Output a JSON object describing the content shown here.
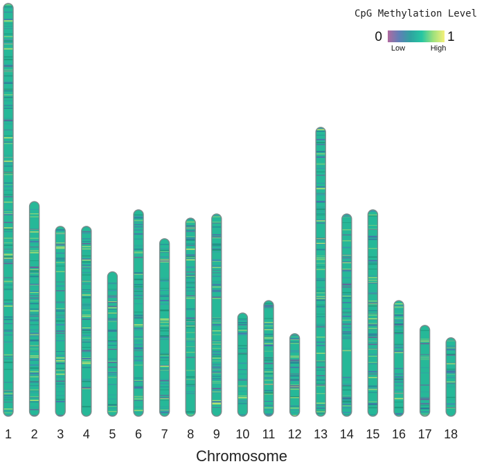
{
  "chart_data": {
    "type": "heatmap",
    "subtype": "chromosome ideogram with CpG methylation density stripes",
    "title": "CpG Methylation Level",
    "xlabel": "Chromosome",
    "ylabel": "",
    "categories": [
      "1",
      "2",
      "3",
      "4",
      "5",
      "6",
      "7",
      "8",
      "9",
      "10",
      "11",
      "12",
      "13",
      "14",
      "15",
      "16",
      "17",
      "18"
    ],
    "relative_lengths": [
      1.0,
      0.52,
      0.46,
      0.46,
      0.35,
      0.5,
      0.43,
      0.48,
      0.49,
      0.25,
      0.28,
      0.2,
      0.7,
      0.49,
      0.5,
      0.28,
      0.22,
      0.19
    ],
    "legend": {
      "title": "CpG Methylation Level",
      "min_label": "0",
      "max_label": "1",
      "low_label": "Low",
      "high_label": "High",
      "position": "top-right",
      "colorscale": [
        "#b06aa0",
        "#5f7fb7",
        "#2fa3a0",
        "#26c6a2",
        "#9ee07c",
        "#f4f07a"
      ]
    },
    "dominant_color": "#26b898",
    "outline_color": "#7a8c8c"
  }
}
